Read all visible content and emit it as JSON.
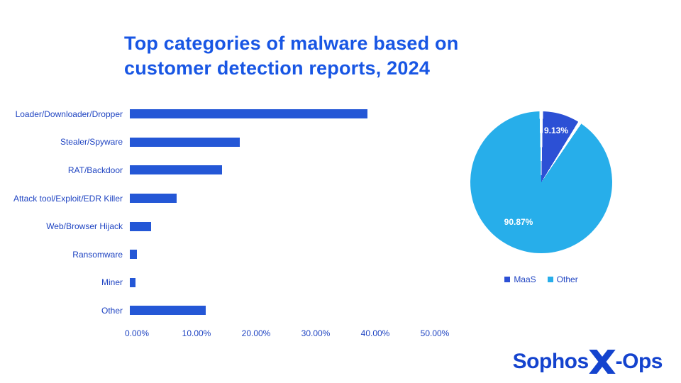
{
  "title": {
    "line1": "Top categories of malware based on",
    "line2": "customer detection reports, 2024"
  },
  "colors": {
    "background": "#FFFFFF",
    "title": "#1856E4",
    "text": "#1F44C2",
    "bar": "#2457D6",
    "pie_maas": "#2C50D5",
    "pie_other": "#27AEEA",
    "logo": "#1443CE"
  },
  "chart_data": [
    {
      "type": "bar",
      "orientation": "horizontal",
      "title": "Top categories of malware based on customer detection reports, 2024",
      "categories": [
        "Loader/Downloader/Dropper",
        "Stealer/Spyware",
        "RAT/Backdoor",
        "Attack tool/Exploit/EDR Killer",
        "Web/Browser Hijack",
        "Ransomware",
        "Miner",
        "Other"
      ],
      "values": [
        39.9,
        18.5,
        15.5,
        7.9,
        3.6,
        1.2,
        1.0,
        12.7
      ],
      "unit": "%",
      "xlim": [
        0,
        50
      ],
      "x_ticks": [
        "0.00%",
        "10.00%",
        "20.00%",
        "30.00%",
        "40.00%",
        "50.00%"
      ],
      "grid": false
    },
    {
      "type": "pie",
      "legend_position": "bottom",
      "slices": [
        {
          "label": "MaaS",
          "value": 9.13,
          "display": "9.13%",
          "color": "#2C50D5"
        },
        {
          "label": "Other",
          "value": 90.87,
          "display": "90.87%",
          "color": "#27AEEA"
        }
      ]
    }
  ],
  "logo": {
    "sophos": "Sophos",
    "ops": "-Ops"
  }
}
